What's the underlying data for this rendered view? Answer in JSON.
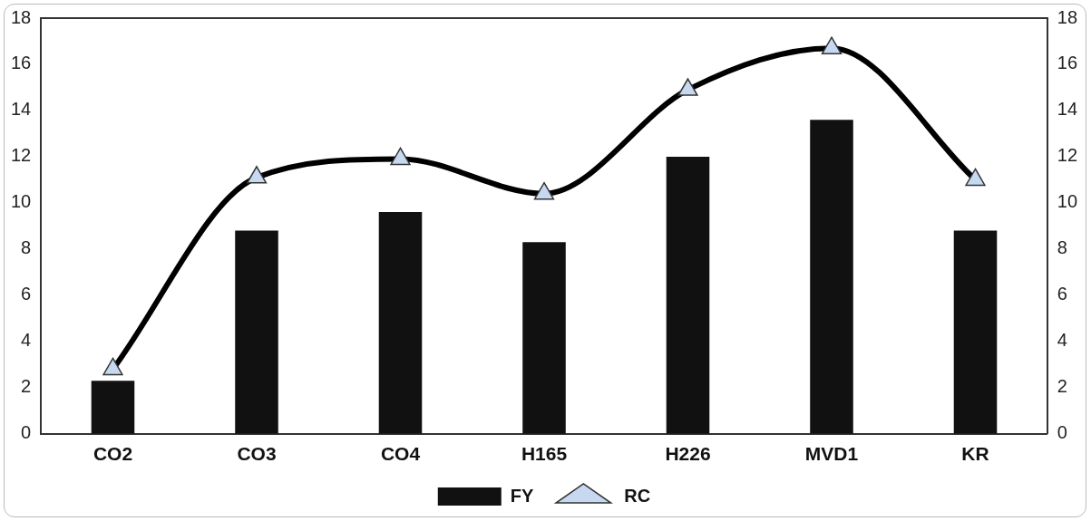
{
  "chart_data": {
    "type": "bar",
    "categories": [
      "CO2",
      "CO3",
      "CO4",
      "H165",
      "H226",
      "MVD1",
      "KR"
    ],
    "series": [
      {
        "name": "FY",
        "color": "#111111",
        "values": [
          2.3,
          8.8,
          9.6,
          8.3,
          12.0,
          13.6,
          8.8
        ]
      },
      {
        "name": "RC",
        "type": "line",
        "color": "#000000",
        "values": [
          2.8,
          11.1,
          11.9,
          10.4,
          14.9,
          16.7,
          11.0
        ]
      }
    ],
    "ylim": [
      0,
      18
    ],
    "yticks": [
      0,
      2,
      4,
      6,
      8,
      10,
      12,
      14,
      16,
      18
    ],
    "y2lim": [
      0,
      18
    ],
    "y2ticks": [
      0,
      2,
      4,
      6,
      8,
      10,
      12,
      14,
      16,
      18
    ],
    "grid": false,
    "legend": "bottom",
    "marker": "triangle",
    "line_style": "solid"
  }
}
